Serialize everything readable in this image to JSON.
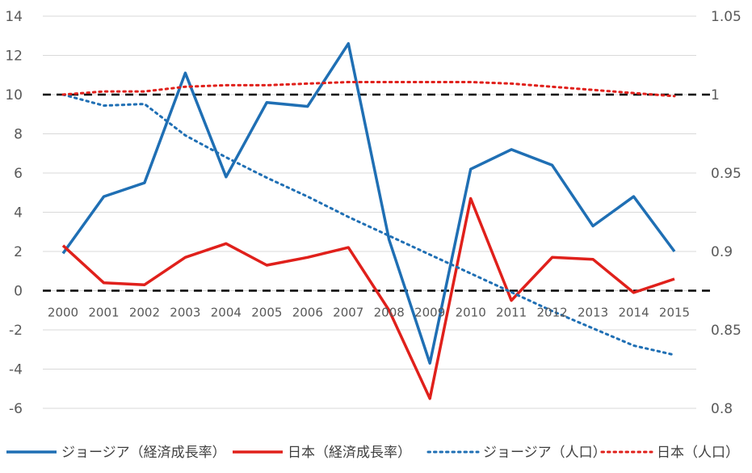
{
  "chart_data": {
    "type": "line",
    "categories": [
      "2000",
      "2001",
      "2002",
      "2003",
      "2004",
      "2005",
      "2006",
      "2007",
      "2008",
      "2009",
      "2010",
      "2011",
      "2012",
      "2013",
      "2014",
      "2015"
    ],
    "y_left": {
      "min": -6,
      "max": 14,
      "step": 2,
      "ticks": [
        "14",
        "12",
        "10",
        "8",
        "6",
        "4",
        "2",
        "0",
        "-2",
        "-4",
        "-6"
      ]
    },
    "y_right": {
      "min": 0.8,
      "max": 1.05,
      "step": 0.05,
      "ticks": [
        "1.05",
        "1",
        "0.95",
        "0.9",
        "0.85",
        "0.8"
      ]
    },
    "reference_lines": [
      {
        "axis": "left",
        "value": 10
      },
      {
        "axis": "left",
        "value": 0
      }
    ],
    "legend_position": "bottom",
    "grid": "horizontal",
    "series": [
      {
        "name": "ジョージア（経済成長率）",
        "axis": "left",
        "style": "solid",
        "color": "#1f6fb4",
        "values": [
          1.9,
          4.8,
          5.5,
          11.1,
          5.8,
          9.6,
          9.4,
          12.6,
          2.6,
          -3.7,
          6.2,
          7.2,
          6.4,
          3.3,
          4.8,
          2.0
        ]
      },
      {
        "name": "日本（経済成長率）",
        "axis": "left",
        "style": "solid",
        "color": "#e0201b",
        "values": [
          2.3,
          0.4,
          0.3,
          1.7,
          2.4,
          1.3,
          1.7,
          2.2,
          -1.0,
          -5.5,
          4.7,
          -0.5,
          1.7,
          1.6,
          -0.1,
          0.6
        ]
      },
      {
        "name": "ジョージア（人口）",
        "axis": "right",
        "style": "dotted",
        "color": "#1f6fb4",
        "values": [
          1.0,
          0.993,
          0.994,
          0.974,
          0.96,
          0.947,
          0.935,
          0.922,
          0.91,
          0.898,
          0.886,
          0.874,
          0.862,
          0.851,
          0.84,
          0.834
        ]
      },
      {
        "name": "日本（人口）",
        "axis": "right",
        "style": "dotted",
        "color": "#e0201b",
        "values": [
          1.0,
          1.002,
          1.002,
          1.005,
          1.006,
          1.006,
          1.007,
          1.008,
          1.008,
          1.008,
          1.008,
          1.007,
          1.005,
          1.003,
          1.001,
          0.999
        ]
      }
    ]
  }
}
